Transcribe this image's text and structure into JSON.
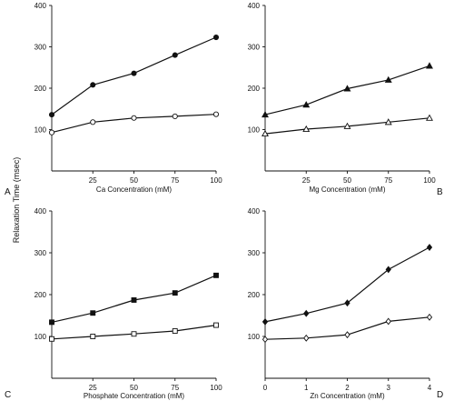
{
  "figure": {
    "ylabel": "Relaxation Time (msec)"
  },
  "chart_data": [
    {
      "type": "line",
      "panel_letter": "A",
      "xlabel": "Ca Concentration (mM)",
      "ylabel": "Relaxation Time (msec)",
      "x_ticks": [
        "25",
        "50",
        "75",
        "100"
      ],
      "x_tick_values": [
        25,
        50,
        75,
        100
      ],
      "xlim": [
        0,
        100
      ],
      "y_ticks": [
        "100",
        "200",
        "300",
        "400"
      ],
      "y_tick_values": [
        100,
        200,
        300,
        400
      ],
      "ylim": [
        0,
        400
      ],
      "grid": false,
      "series": [
        {
          "marker": "filled-circle",
          "x": [
            0,
            25,
            50,
            75,
            100
          ],
          "values": [
            136,
            208,
            236,
            280,
            323
          ]
        },
        {
          "marker": "open-circle",
          "x": [
            0,
            25,
            50,
            75,
            100
          ],
          "values": [
            93,
            118,
            128,
            132,
            137
          ]
        }
      ]
    },
    {
      "type": "line",
      "panel_letter": "B",
      "xlabel": "Mg Concentration (mM)",
      "ylabel": "Relaxation Time (msec)",
      "x_ticks": [
        "25",
        "50",
        "75",
        "100"
      ],
      "x_tick_values": [
        25,
        50,
        75,
        100
      ],
      "xlim": [
        0,
        100
      ],
      "y_ticks": [
        "100",
        "200",
        "300",
        "400"
      ],
      "y_tick_values": [
        100,
        200,
        300,
        400
      ],
      "ylim": [
        0,
        400
      ],
      "grid": false,
      "series": [
        {
          "marker": "filled-triangle",
          "x": [
            0,
            25,
            50,
            75,
            100
          ],
          "values": [
            136,
            160,
            199,
            220,
            254
          ]
        },
        {
          "marker": "open-triangle",
          "x": [
            0,
            25,
            50,
            75,
            100
          ],
          "values": [
            90,
            101,
            108,
            118,
            128
          ]
        }
      ]
    },
    {
      "type": "line",
      "panel_letter": "C",
      "xlabel": "Phosphate Concentration (mM)",
      "ylabel": "Relaxation Time (msec)",
      "x_ticks": [
        "25",
        "50",
        "75",
        "100"
      ],
      "x_tick_values": [
        25,
        50,
        75,
        100
      ],
      "xlim": [
        0,
        100
      ],
      "y_ticks": [
        "100",
        "200",
        "300",
        "400"
      ],
      "y_tick_values": [
        100,
        200,
        300,
        400
      ],
      "ylim": [
        0,
        400
      ],
      "grid": false,
      "series": [
        {
          "marker": "filled-square",
          "x": [
            0,
            25,
            50,
            75,
            100
          ],
          "values": [
            134,
            156,
            187,
            204,
            246
          ]
        },
        {
          "marker": "open-square",
          "x": [
            0,
            25,
            50,
            75,
            100
          ],
          "values": [
            94,
            100,
            106,
            113,
            127
          ]
        }
      ]
    },
    {
      "type": "line",
      "panel_letter": "D",
      "xlabel": "Zn Concentration (mM)",
      "ylabel": "Relaxation Time (msec)",
      "x_ticks": [
        "0",
        "1",
        "2",
        "3",
        "4"
      ],
      "x_tick_values": [
        0,
        1,
        2,
        3,
        4
      ],
      "xlim": [
        0,
        4
      ],
      "y_ticks": [
        "100",
        "200",
        "300",
        "400"
      ],
      "y_tick_values": [
        100,
        200,
        300,
        400
      ],
      "ylim": [
        0,
        400
      ],
      "grid": false,
      "series": [
        {
          "marker": "filled-diamond",
          "x": [
            0,
            1,
            2,
            3,
            4
          ],
          "values": [
            135,
            155,
            180,
            260,
            313
          ]
        },
        {
          "marker": "open-diamond",
          "x": [
            0,
            1,
            2,
            3,
            4
          ],
          "values": [
            93,
            96,
            104,
            136,
            146
          ]
        }
      ]
    }
  ]
}
